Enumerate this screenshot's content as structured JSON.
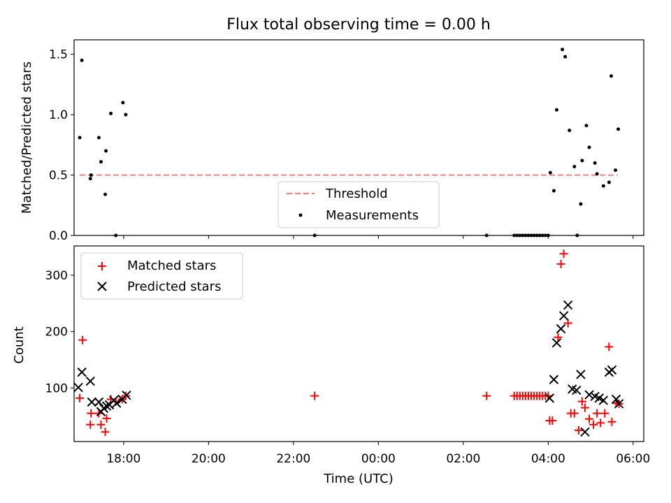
{
  "figure": {
    "title": "Flux total observing time = 0.00 h",
    "xlabel": "Time (UTC)"
  },
  "chart_data": [
    {
      "type": "scatter",
      "panel": "top",
      "ylabel": "Matched/Predicted stars",
      "xlim": [
        "16:50",
        "06:15"
      ],
      "ylim": [
        0,
        1.62
      ],
      "yticks": [
        0.0,
        0.5,
        1.0,
        1.5
      ],
      "ytick_labels": [
        "0.0",
        "0.5",
        "1.0",
        "1.5"
      ],
      "legend": {
        "placement": "lower-center",
        "entries": [
          "Threshold",
          "Measurements"
        ]
      },
      "series": [
        {
          "name": "Threshold",
          "style": "dashed-line",
          "color": "#f08080",
          "x": [
            "16:58",
            "05:38"
          ],
          "y": [
            0.5,
            0.5
          ]
        },
        {
          "name": "Measurements",
          "style": "dot",
          "color": "#000000",
          "x": [
            "16:58",
            "17:01",
            "17:13",
            "17:14",
            "17:25",
            "17:28",
            "17:34",
            "17:35",
            "17:42",
            "17:49",
            "17:59",
            "18:03",
            "22:30",
            "02:33",
            "03:12",
            "03:16",
            "03:20",
            "03:24",
            "03:28",
            "03:32",
            "03:36",
            "03:40",
            "03:44",
            "03:48",
            "03:52",
            "03:56",
            "04:00",
            "04:03",
            "04:08",
            "04:12",
            "04:20",
            "04:24",
            "04:30",
            "04:37",
            "04:41",
            "04:46",
            "04:48",
            "04:54",
            "04:58",
            "05:06",
            "05:09",
            "05:18",
            "05:26",
            "05:29",
            "05:35",
            "05:39"
          ],
          "y": [
            0.81,
            1.45,
            0.47,
            0.5,
            0.81,
            0.61,
            0.34,
            0.7,
            1.01,
            0.0,
            1.1,
            1.0,
            0.0,
            0.0,
            0.0,
            0.0,
            0.0,
            0.0,
            0.0,
            0.0,
            0.0,
            0.0,
            0.0,
            0.0,
            0.0,
            0.0,
            0.0,
            0.52,
            0.37,
            1.04,
            1.54,
            1.48,
            0.87,
            0.57,
            0.0,
            0.26,
            0.62,
            0.91,
            0.73,
            0.6,
            0.51,
            0.41,
            0.44,
            1.32,
            0.54,
            0.88
          ]
        }
      ]
    },
    {
      "type": "scatter",
      "panel": "bottom",
      "ylabel": "Count",
      "xlim": [
        "16:50",
        "06:15"
      ],
      "ylim": [
        5,
        352
      ],
      "yticks": [
        100,
        200,
        300
      ],
      "ytick_labels": [
        "100",
        "200",
        "300"
      ],
      "xticks": [
        "18:00",
        "20:00",
        "22:00",
        "00:00",
        "02:00",
        "04:00",
        "06:00"
      ],
      "xtick_labels": [
        "18:00",
        "20:00",
        "22:00",
        "00:00",
        "02:00",
        "04:00",
        "06:00"
      ],
      "legend": {
        "placement": "top-left",
        "entries": [
          "Matched stars",
          "Predicted stars"
        ]
      },
      "series": [
        {
          "name": "Matched stars",
          "marker": "plus",
          "color": "#ff0000",
          "x": [
            "16:58",
            "17:02",
            "17:13",
            "17:14",
            "17:25",
            "17:28",
            "17:34",
            "17:36",
            "17:42",
            "17:49",
            "17:58",
            "18:03",
            "22:30",
            "02:33",
            "03:12",
            "03:16",
            "03:20",
            "03:24",
            "03:28",
            "03:32",
            "03:36",
            "03:40",
            "03:44",
            "03:48",
            "03:52",
            "03:56",
            "04:00",
            "04:02",
            "04:06",
            "04:14",
            "04:18",
            "04:22",
            "04:28",
            "04:32",
            "04:37",
            "04:43",
            "04:48",
            "04:52",
            "04:58",
            "05:04",
            "05:09",
            "05:14",
            "05:20",
            "05:26",
            "05:30",
            "05:36",
            "05:40"
          ],
          "y": [
            82,
            185,
            35,
            55,
            55,
            35,
            22,
            46,
            80,
            76,
            80,
            86,
            86,
            86,
            86,
            86,
            86,
            86,
            86,
            86,
            86,
            86,
            86,
            86,
            86,
            86,
            86,
            42,
            42,
            190,
            320,
            338,
            215,
            55,
            55,
            25,
            76,
            65,
            45,
            35,
            55,
            38,
            55,
            173,
            40,
            73,
            72
          ],
          "show": [
            true,
            true,
            true,
            true,
            true,
            true,
            true,
            true,
            true,
            true,
            true,
            true,
            true,
            true,
            true,
            true,
            true,
            true,
            true,
            true,
            true,
            true,
            true,
            true,
            true,
            true,
            true,
            true,
            true,
            true,
            true,
            true,
            true,
            true,
            true,
            true,
            true,
            true,
            true,
            true,
            true,
            true,
            true,
            true,
            true,
            true,
            true
          ]
        },
        {
          "name": "Predicted stars",
          "marker": "x",
          "color": "#000000",
          "x": [
            "16:56",
            "17:01",
            "17:13",
            "17:15",
            "17:25",
            "17:28",
            "17:32",
            "17:36",
            "17:40",
            "17:46",
            "17:50",
            "17:58",
            "18:04",
            "04:02",
            "04:08",
            "04:12",
            "04:18",
            "04:22",
            "04:28",
            "04:34",
            "04:40",
            "04:46",
            "04:52",
            "04:58",
            "05:06",
            "05:12",
            "05:18",
            "05:26",
            "05:30",
            "05:36",
            "05:40"
          ],
          "y": [
            101,
            128,
            112,
            75,
            75,
            58,
            64,
            68,
            70,
            78,
            73,
            80,
            87,
            82,
            115,
            180,
            205,
            228,
            247,
            98,
            96,
            124,
            22,
            88,
            85,
            82,
            78,
            128,
            132,
            80,
            72
          ]
        }
      ]
    }
  ]
}
